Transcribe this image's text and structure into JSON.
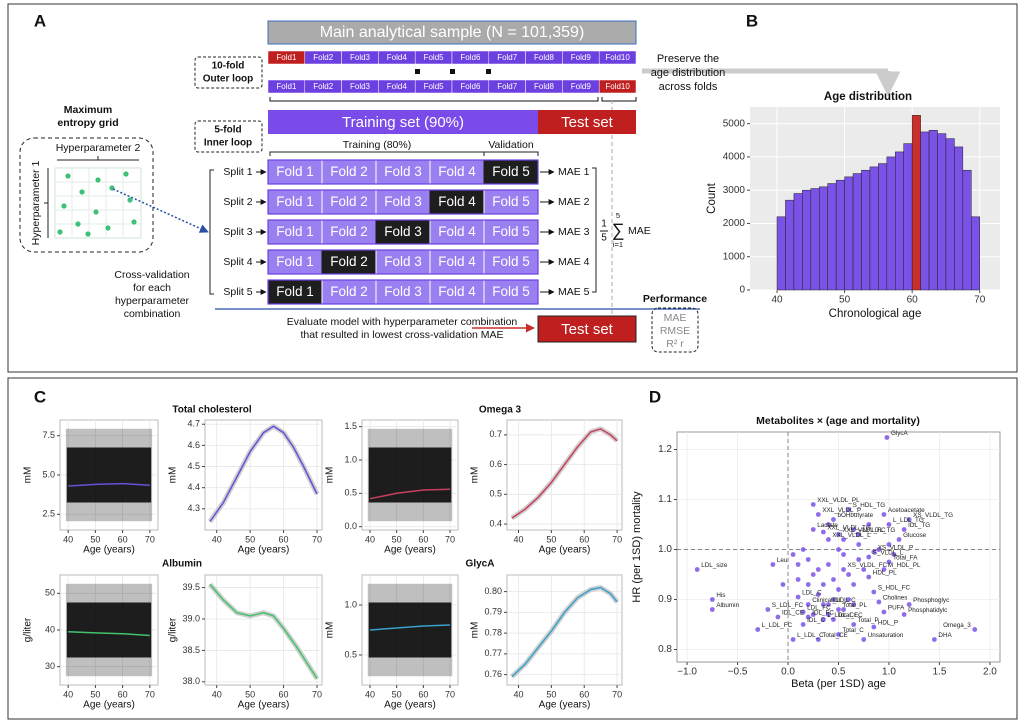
{
  "panel_a": {
    "label": "A",
    "main_sample": "Main analytical sample (N = 101,359)",
    "outer_loop": [
      "10-fold",
      "Outer loop"
    ],
    "outer_folds": [
      "Fold1",
      "Fold2",
      "Fold3",
      "Fold4",
      "Fold5",
      "Fold6",
      "Fold7",
      "Fold8",
      "Fold9",
      "Fold10"
    ],
    "preserve": [
      "Preserve the",
      "age distribution",
      "across folds"
    ],
    "grid_title": [
      "Maximum",
      "entropy grid"
    ],
    "hyperparameter_2": "Hyperparameter 2",
    "hyperparameter_1": "Hyperparameter 1",
    "inner_loop": [
      "5-fold",
      "Inner loop"
    ],
    "training_set": "Training set (90%)",
    "test_set": "Test set",
    "training_80": "Training (80%)",
    "validation": "Validation",
    "splits": [
      "Split 1",
      "Split 2",
      "Split 3",
      "Split 4",
      "Split 5"
    ],
    "inner_folds": [
      "Fold 1",
      "Fold 2",
      "Fold 3",
      "Fold 4",
      "Fold 5"
    ],
    "maes": [
      "MAE 1",
      "MAE 2",
      "MAE 3",
      "MAE 4",
      "MAE 5"
    ],
    "formula": {
      "numerator": "1",
      "denominator": "5",
      "upper": "5",
      "sum": "∑",
      "lower": "i=1",
      "term": "MAE"
    },
    "cv_note": [
      "Cross-validation",
      "for each",
      "hyperparameter",
      "combination"
    ],
    "evaluate": [
      "Evaluate model with hyperparameter combination",
      "that resulted in lowest cross-validation MAE"
    ],
    "performance": "Performance",
    "metrics": [
      "MAE",
      "RMSE",
      "R² r"
    ]
  },
  "chart_data": [
    {
      "type": "histogram",
      "panel": "B",
      "title": "Age distribution",
      "xlabel": "Chronological age",
      "ylabel": "Count",
      "bins": [
        40,
        41.25,
        42.5,
        43.75,
        45,
        46.25,
        47.5,
        48.75,
        50,
        51.25,
        52.5,
        53.75,
        55,
        56.25,
        57.5,
        58.75,
        60,
        61.25,
        62.5,
        63.75,
        65,
        66.25,
        67.5,
        68.75,
        70
      ],
      "values": [
        2200,
        2700,
        2900,
        3000,
        3050,
        3100,
        3200,
        3300,
        3400,
        3500,
        3600,
        3700,
        3800,
        4000,
        4150,
        4400,
        5250,
        4750,
        4800,
        4700,
        4550,
        4300,
        3600,
        2200
      ],
      "color": "#7b52e6",
      "highlight": {
        "index": 16,
        "color": "#c9302c"
      },
      "xlim": [
        36,
        73
      ],
      "ylim": [
        0,
        5500
      ],
      "xticks": [
        40,
        50,
        60,
        70
      ],
      "yticks": [
        0,
        1000,
        2000,
        3000,
        4000,
        5000
      ],
      "grid": true
    },
    {
      "type": "line",
      "panel": "C",
      "title": "Total cholesterol",
      "xlabel": "Age (years)",
      "ylabel": "mM",
      "scatter_cloud": true,
      "x": [
        40,
        50,
        60,
        70
      ],
      "values": [
        4.3,
        4.4,
        4.45,
        4.35
      ],
      "color": "#6a4fd8",
      "xlim": [
        37,
        73
      ],
      "ylim": [
        1.5,
        8.5
      ],
      "xticks": [
        40,
        50,
        60,
        70
      ],
      "yticks": [
        2.5,
        {
          "value": 5,
          "label": "5.0"
        },
        7.5
      ],
      "grid": true
    },
    {
      "type": "line",
      "xlabel": "Age (years)",
      "ylabel": "mM",
      "x": [
        38,
        42,
        46,
        50,
        54,
        57,
        60,
        63,
        66,
        70
      ],
      "values": [
        4.24,
        4.33,
        4.45,
        4.57,
        4.66,
        4.69,
        4.66,
        4.59,
        4.5,
        4.37
      ],
      "color": "#6a4fd8",
      "xlim": [
        36.5,
        71.5
      ],
      "ylim": [
        4.2,
        4.72
      ],
      "xticks": [
        40,
        50,
        60,
        70
      ],
      "yticks": [
        4.3,
        4.4,
        4.5,
        4.6,
        4.7
      ],
      "grid": true
    },
    {
      "type": "line",
      "title": "Omega 3",
      "xlabel": "Age (years)",
      "ylabel": "mM",
      "scatter_cloud": true,
      "x": [
        40,
        50,
        60,
        70
      ],
      "values": [
        0.42,
        0.5,
        0.55,
        0.56
      ],
      "color": "#c8405c",
      "xlim": [
        37,
        73
      ],
      "ylim": [
        -0.05,
        1.6
      ],
      "xticks": [
        40,
        50,
        60,
        70
      ],
      "yticks": [
        {
          "value": 0,
          "label": "0.0"
        },
        0.5,
        {
          "value": 1,
          "label": "1.0"
        },
        1.5
      ],
      "grid": true
    },
    {
      "type": "line",
      "xlabel": "Age (years)",
      "ylabel": "mM",
      "x": [
        38,
        42,
        46,
        50,
        54,
        58,
        62,
        65,
        68,
        70
      ],
      "values": [
        0.42,
        0.45,
        0.49,
        0.54,
        0.6,
        0.66,
        0.71,
        0.72,
        0.7,
        0.68
      ],
      "color": "#c8405c",
      "xlim": [
        36.5,
        71.5
      ],
      "ylim": [
        0.38,
        0.75
      ],
      "xticks": [
        40,
        50,
        60,
        70
      ],
      "yticks": [
        0.4,
        0.5,
        0.6,
        0.7
      ],
      "grid": true
    },
    {
      "type": "line",
      "title": "Albumin",
      "xlabel": "Age (years)",
      "ylabel": "g/liter",
      "scatter_cloud": true,
      "x": [
        40,
        50,
        60,
        70
      ],
      "values": [
        39.5,
        39.2,
        39,
        38.5
      ],
      "color": "#43c36b",
      "xlim": [
        37,
        73
      ],
      "ylim": [
        25,
        55
      ],
      "xticks": [
        40,
        50,
        60,
        70
      ],
      "yticks": [
        30,
        40,
        50
      ],
      "grid": true
    },
    {
      "type": "line",
      "xlabel": "Age (years)",
      "ylabel": "g/liter",
      "x": [
        38,
        42,
        46,
        50,
        54,
        57,
        60,
        64,
        67,
        70
      ],
      "values": [
        39.55,
        39.3,
        39.1,
        39.05,
        39.1,
        39.05,
        38.85,
        38.55,
        38.3,
        38.05
      ],
      "color": "#43c36b",
      "xlim": [
        36.5,
        71.5
      ],
      "ylim": [
        37.95,
        39.7
      ],
      "xticks": [
        40,
        50,
        60,
        70
      ],
      "yticks": [
        {
          "value": 38,
          "label": "38.0"
        },
        38.5,
        {
          "value": 39,
          "label": "39.0"
        },
        39.5
      ],
      "grid": true
    },
    {
      "type": "line",
      "title": "GlycA",
      "xlabel": "Age (years)",
      "ylabel": "mM",
      "scatter_cloud": true,
      "x": [
        40,
        50,
        60,
        70
      ],
      "values": [
        0.75,
        0.77,
        0.79,
        0.8
      ],
      "color": "#3aa0cc",
      "xlim": [
        37,
        73
      ],
      "ylim": [
        0.2,
        1.3
      ],
      "xticks": [
        40,
        50,
        60,
        70
      ],
      "yticks": [
        0.5,
        {
          "value": 1,
          "label": "1.0"
        }
      ],
      "grid": true
    },
    {
      "type": "line",
      "xlabel": "Age (years)",
      "ylabel": "mM",
      "x": [
        38,
        42,
        46,
        50,
        54,
        58,
        62,
        65,
        68,
        70
      ],
      "values": [
        0.759,
        0.765,
        0.773,
        0.781,
        0.79,
        0.797,
        0.801,
        0.802,
        0.799,
        0.795
      ],
      "color": "#3aa0cc",
      "xlim": [
        36.5,
        71.5
      ],
      "ylim": [
        0.755,
        0.808
      ],
      "xticks": [
        40,
        50,
        60,
        70
      ],
      "yticks": [
        0.76,
        0.77,
        0.78,
        0.79,
        {
          "value": 0.8,
          "label": "0.80"
        }
      ],
      "grid": true
    },
    {
      "type": "scatter",
      "panel": "D",
      "title": "Metabolites × (age and mortality)",
      "xlabel": "Beta (per 1SD) age",
      "ylabel": "HR (per 1SD) mortality",
      "color": "#7b52e6",
      "reference_lines": {
        "x": 0,
        "y": 1
      },
      "xlim": [
        -1.1,
        2.1
      ],
      "ylim": [
        0.775,
        1.235
      ],
      "xticks": [
        {
          "value": -1,
          "label": "−1.0"
        },
        {
          "value": -0.5,
          "label": "−0.5"
        },
        {
          "value": 0,
          "label": "0.0"
        },
        0.5,
        {
          "value": 1,
          "label": "1.0"
        },
        1.5,
        {
          "value": 2,
          "label": "2.0"
        }
      ],
      "yticks": [
        0.8,
        0.9,
        {
          "value": 1,
          "label": "1.0"
        },
        1.1,
        1.2
      ],
      "grid": true,
      "labels": [
        "GlycA",
        "Acetoacetate",
        "S_HDL_TG",
        "XXL_VLDL_PL",
        "XXL_VLDL_P",
        "bOHbutyrate",
        "Lactate",
        "L_LDL_TG",
        "XS_VLDL_TG",
        "IDL_TG",
        "XXL_VLDL_TG",
        "XXL_VLDL_FC",
        "M_LDL_TG",
        "Glucose",
        "XXL_VLDL_L",
        "XS_VLDL_P",
        "S_VLDL_L",
        "Total_FA",
        "Leu",
        "LDL_size",
        "XS_VLDL_FC",
        "M_HDL_PL",
        "HDL_PL",
        "His",
        "S_HDL_FC",
        "Albumin",
        "LDL_C",
        "IDL_L",
        "Cholines",
        "Phosphoglyc",
        "Clinical_LDL_C",
        "S_LDL_FC",
        "LDL_FC",
        "IDL_FC",
        "Total_PL",
        "PUFA",
        "Phosphatidylc",
        "IDL_CE",
        "L_LDL_CE",
        "Total_FC",
        "Total_P",
        "HDL_P",
        "L_LDL_FC",
        "IDL_C",
        "Total_C",
        "Unsaturation",
        "L_LDL_C",
        "Total_CE",
        "DHA",
        "Omega_3",
        null,
        null,
        null,
        null,
        null,
        null,
        null,
        null,
        null,
        null,
        null,
        null,
        null,
        null,
        null,
        null,
        null,
        null,
        null,
        null,
        null,
        null,
        null,
        null,
        null,
        null,
        null,
        null,
        null,
        null,
        null,
        null,
        null,
        null,
        null
      ],
      "x": [
        0.98,
        0.95,
        0.6,
        0.25,
        0.3,
        0.45,
        0.25,
        1.0,
        1.2,
        1.15,
        0.35,
        0.5,
        0.7,
        1.1,
        0.4,
        0.85,
        0.8,
        1.0,
        -0.15,
        -0.9,
        0.55,
        0.95,
        0.8,
        -0.75,
        0.85,
        -0.75,
        0.1,
        0.4,
        0.9,
        1.2,
        0.2,
        -0.2,
        0.15,
        0.2,
        0.5,
        0.95,
        1.15,
        -0.1,
        0.35,
        0.45,
        0.65,
        0.85,
        -0.3,
        0.15,
        0.5,
        0.75,
        0.05,
        0.3,
        1.45,
        1.85,
        0.05,
        0.1,
        0.15,
        0.2,
        0.25,
        0.3,
        0.35,
        0.4,
        0.45,
        0.5,
        0.55,
        0.6,
        0.65,
        0.7,
        0.75,
        0.3,
        0.35,
        0.45,
        0.55,
        0.6,
        0.25,
        0.4,
        0.65,
        0.7,
        0.9,
        1.0,
        0.5,
        0.2,
        0.1,
        -0.05,
        0.8,
        0.65,
        0.4,
        1.05,
        0.55
      ],
      "values": [
        1.224,
        1.07,
        1.08,
        1.09,
        1.07,
        1.06,
        1.04,
        1.05,
        1.06,
        1.04,
        1.035,
        1.03,
        1.03,
        1.02,
        1.02,
        0.995,
        0.985,
        0.975,
        0.97,
        0.96,
        0.96,
        0.96,
        0.945,
        0.9,
        0.915,
        0.88,
        0.905,
        0.89,
        0.895,
        0.89,
        0.89,
        0.88,
        0.875,
        0.865,
        0.88,
        0.875,
        0.87,
        0.865,
        0.86,
        0.86,
        0.85,
        0.845,
        0.84,
        0.85,
        0.83,
        0.82,
        0.82,
        0.82,
        0.82,
        0.84,
        0.99,
        0.97,
        1.0,
        0.98,
        0.95,
        0.96,
        0.93,
        0.97,
        0.94,
        0.92,
        0.99,
        0.95,
        0.93,
        0.98,
        0.96,
        0.91,
        0.89,
        0.9,
        0.88,
        0.9,
        0.87,
        0.87,
        0.89,
        1.01,
        1.0,
        1.01,
        1.0,
        0.93,
        0.94,
        0.93,
        1.05,
        1.04,
        1.05,
        0.99,
        1.02
      ]
    }
  ]
}
